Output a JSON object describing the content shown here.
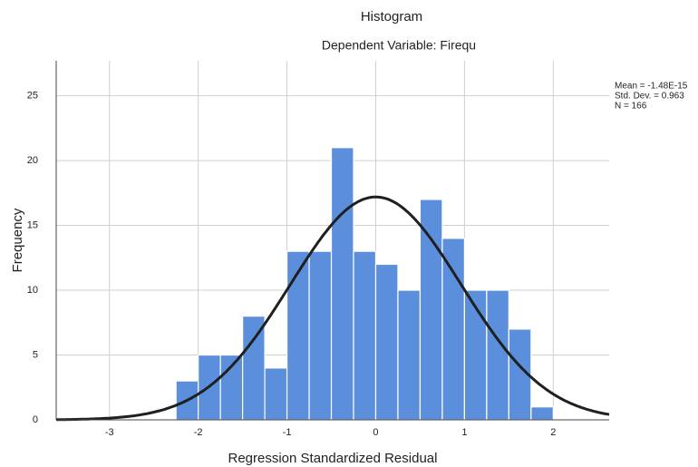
{
  "chart_data": {
    "type": "histogram",
    "title": "Histogram",
    "subtitle": "Dependent Variable: Firequ",
    "x_label": "Regression Standardized Residual",
    "y_label": "Frequency",
    "bins": [
      -2.25,
      -2.0,
      -1.75,
      -1.5,
      -1.25,
      -1.0,
      -0.75,
      -0.5,
      -0.25,
      0.0,
      0.25,
      0.5,
      0.75,
      1.0,
      1.25,
      1.5,
      1.75,
      2.0
    ],
    "values": [
      3,
      5,
      5,
      8,
      4,
      13,
      13,
      21,
      13,
      12,
      10,
      17,
      14,
      10,
      10,
      7,
      1
    ],
    "color": "#5b8fdc",
    "curve_color": "#1f1f1f",
    "xlim": [
      -3.6,
      2.63
    ],
    "ylim": [
      0,
      27.7
    ],
    "xticks": [
      -3,
      -2,
      -1,
      0,
      1,
      2
    ],
    "yticks": [
      0,
      5,
      10,
      15,
      20,
      25
    ],
    "grid": true,
    "stats": [
      {
        "value": -1.48e-15,
        "label": "Mean = -1.48E-15"
      },
      {
        "value": 0.963,
        "label": "Std. Dev. = 0.963"
      },
      {
        "value": 166,
        "label": "N = 166"
      }
    ]
  }
}
